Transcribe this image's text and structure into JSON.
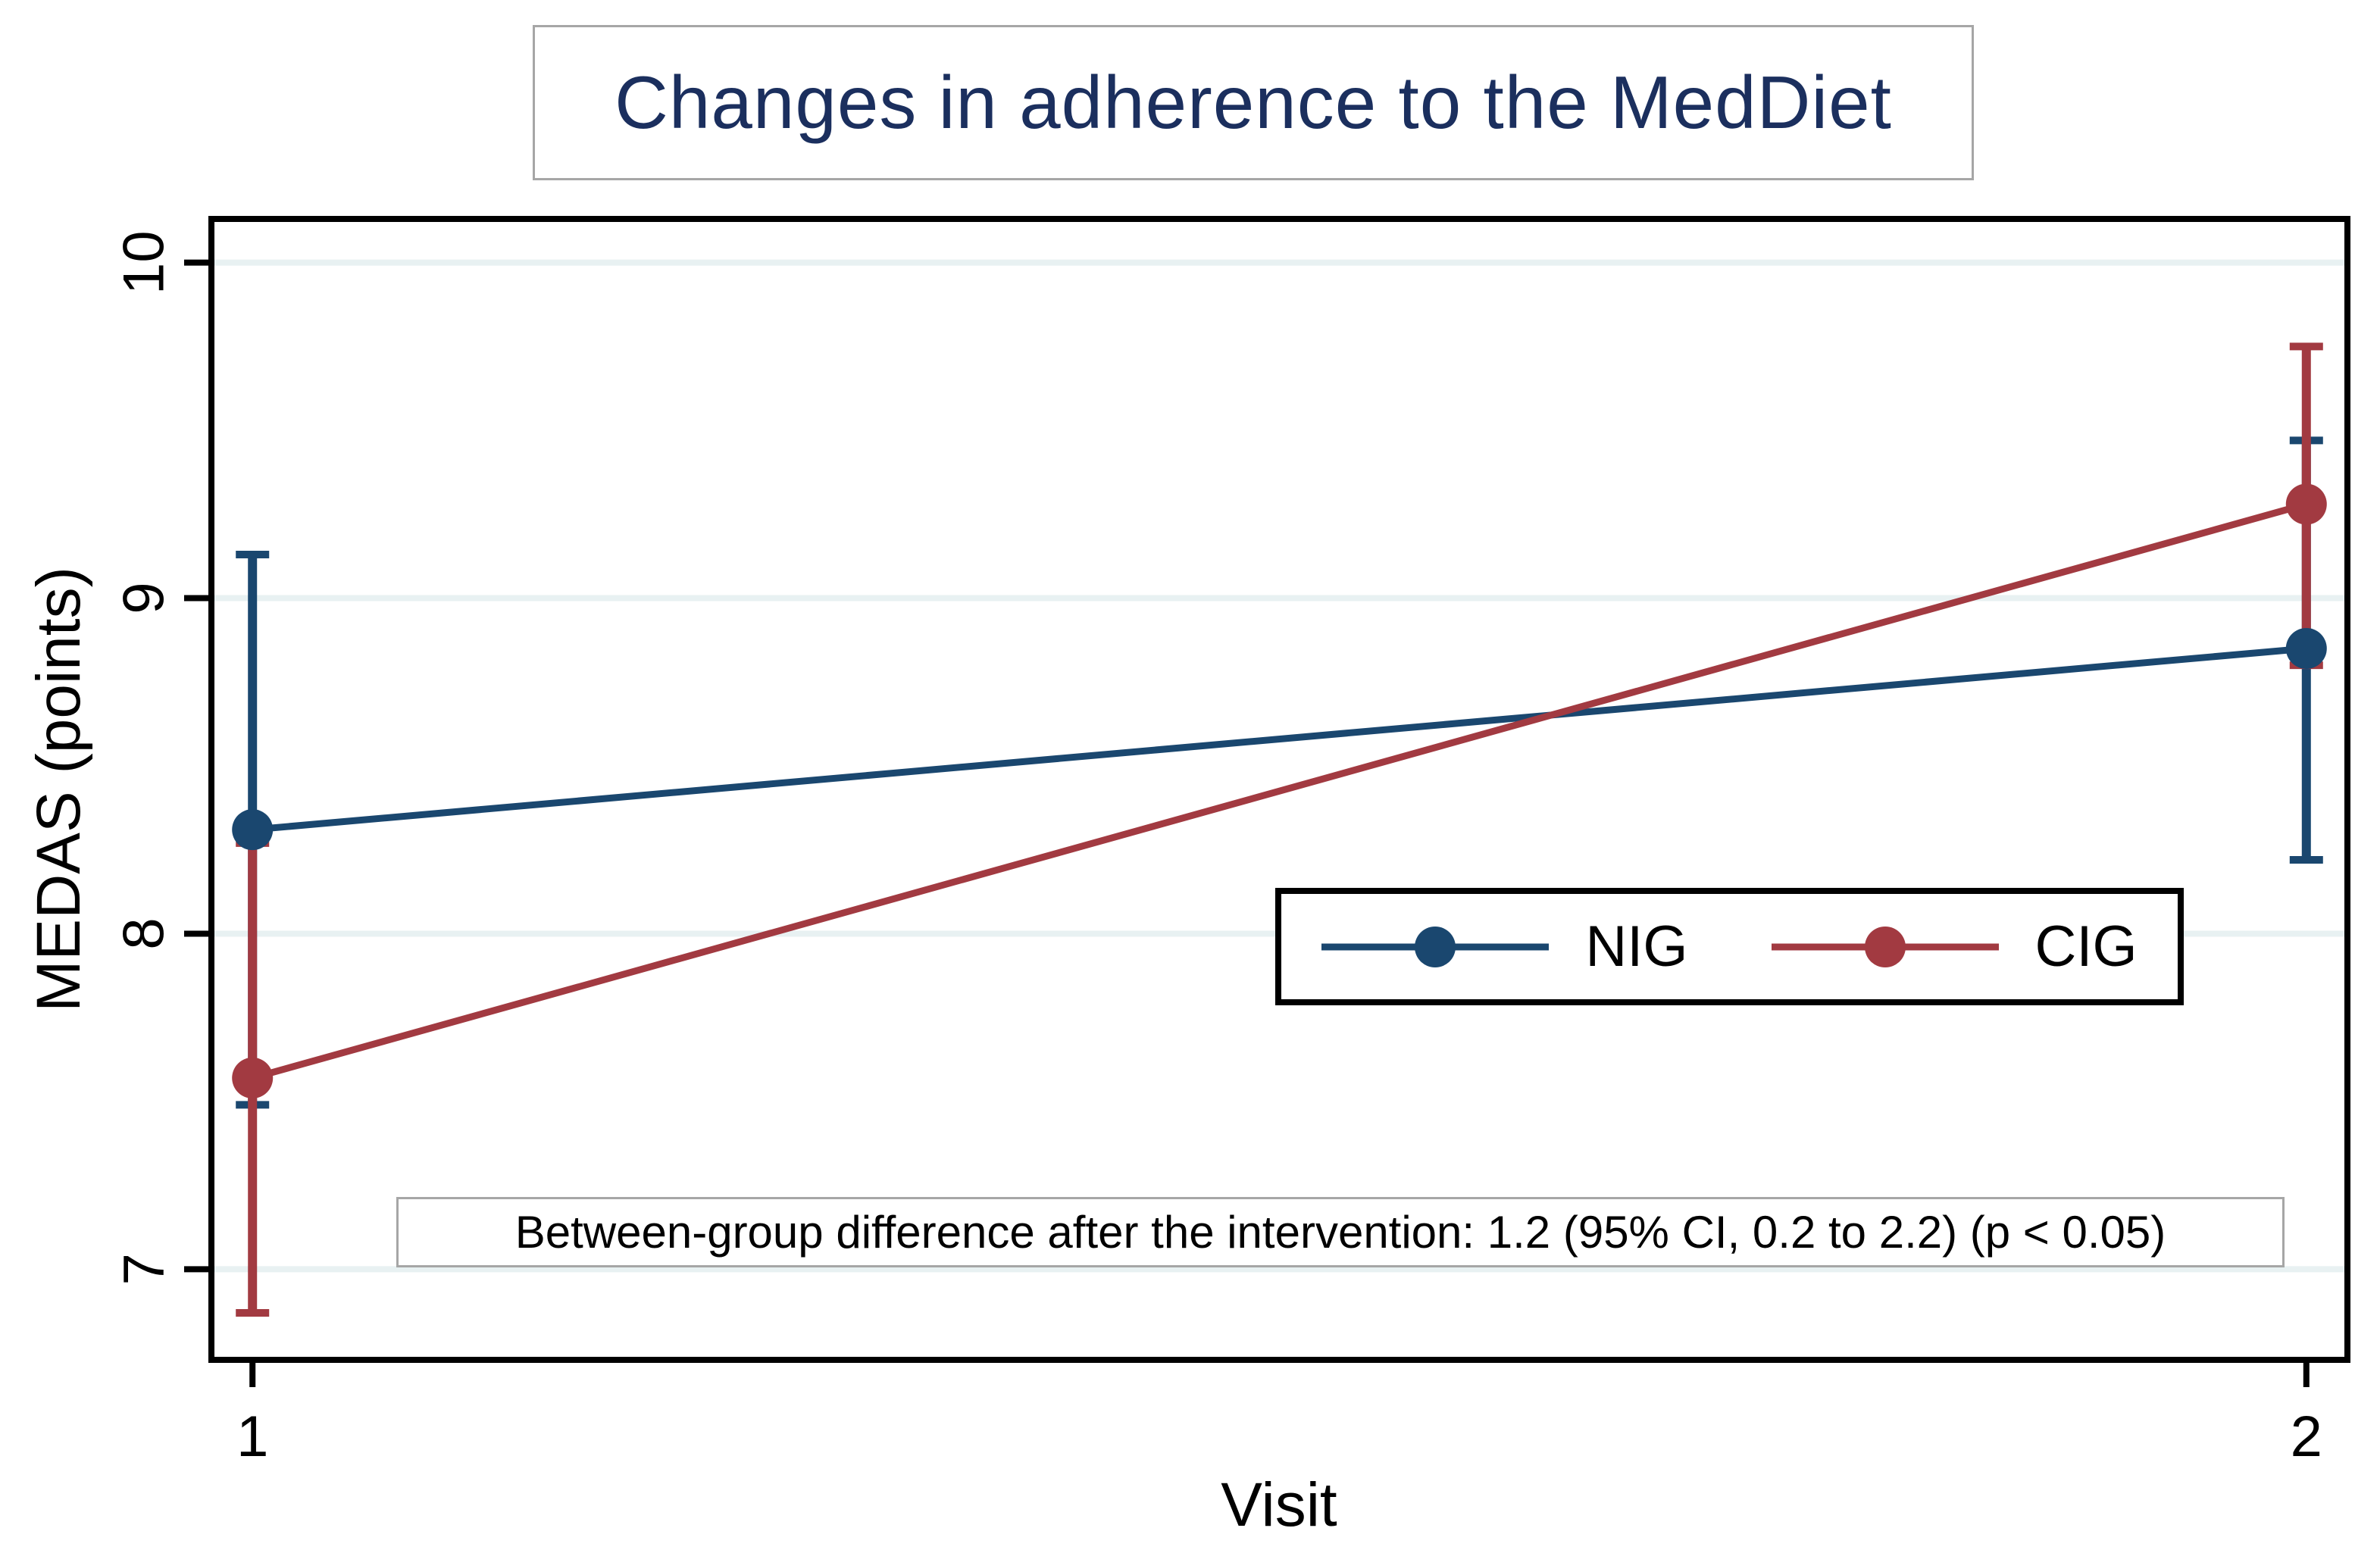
{
  "title": "Changes in adherence to the MedDiet",
  "title_color": "#1b2f5e",
  "annotation": "Between-group difference after the intervention: 1.2 (95% CI, 0.2 to 2.2) (p < 0.05)",
  "axes": {
    "x_label": "Visit",
    "y_label": "MEDAS (points)"
  },
  "legend": {
    "position": "inside-middle-right",
    "entries": [
      {
        "label": "NIG",
        "color": "#1a476f"
      },
      {
        "label": "CIG",
        "color": "#a23a41"
      }
    ]
  },
  "colors": {
    "navy_series": "#1a476f",
    "maroon_series": "#a23a41",
    "gridline": "#e8f1f2",
    "frame": "#000000",
    "box_border": "#a6a6a6",
    "title_text": "#1b2f5e"
  },
  "chart_data": {
    "type": "line",
    "title": "Changes in adherence to the MedDiet",
    "xlabel": "Visit",
    "ylabel": "MEDAS (points)",
    "x": [
      1,
      2
    ],
    "xticks": [
      1,
      2
    ],
    "yticks": [
      7,
      8,
      9,
      10
    ],
    "xlim": [
      0.98,
      2.02
    ],
    "ylim": [
      6.73,
      10.13
    ],
    "grid": true,
    "gridline_color": "#e8f1f2",
    "error_bars": "95% CI",
    "series": [
      {
        "name": "NIG",
        "color": "#1a476f",
        "means": [
          8.31,
          8.85
        ],
        "ci_lower": [
          7.49,
          8.22
        ],
        "ci_upper": [
          9.13,
          9.47
        ]
      },
      {
        "name": "CIG",
        "color": "#a23a41",
        "means": [
          7.57,
          9.28
        ],
        "ci_lower": [
          6.87,
          8.8
        ],
        "ci_upper": [
          8.27,
          9.75
        ]
      }
    ],
    "annotation": "Between-group difference after the intervention: 1.2 (95% CI, 0.2 to 2.2) (p < 0.05)"
  }
}
